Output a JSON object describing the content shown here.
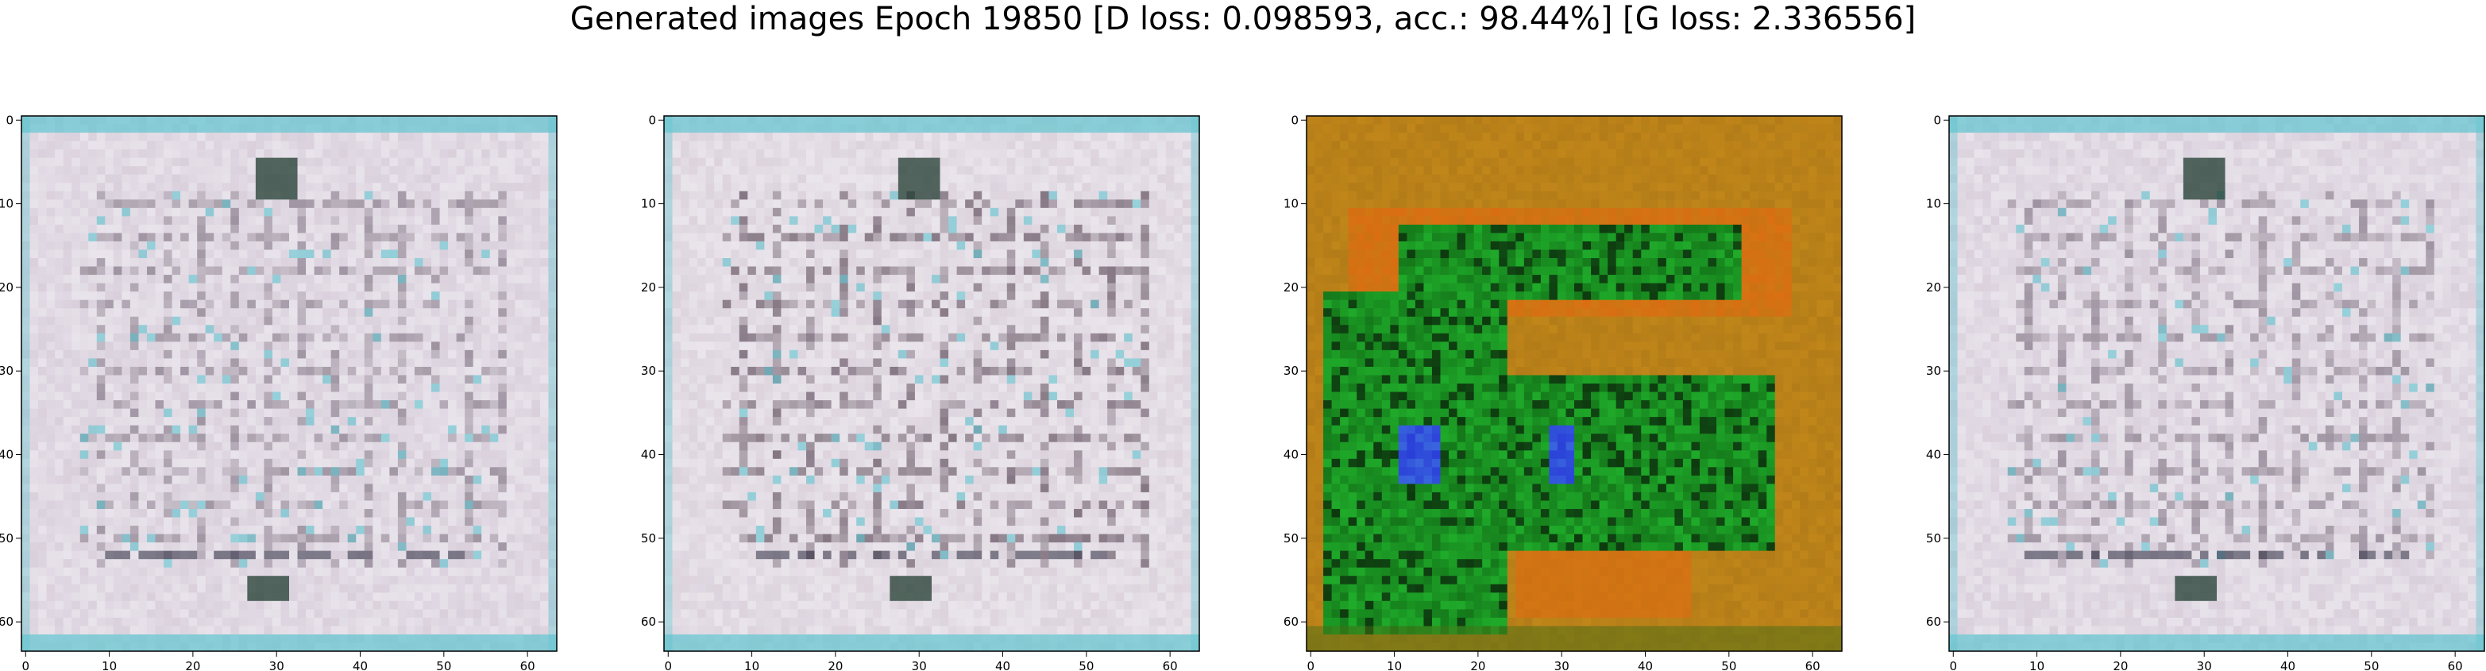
{
  "title": "Generated images Epoch 19850 [D loss: 0.098593, acc.: 98.44%] [G loss: 2.336556]",
  "chart_data": [
    {
      "type": "heatmap",
      "panel": 1,
      "image": "generated-sample-light-grid",
      "xticks": [
        "0",
        "10",
        "20",
        "30",
        "40",
        "50",
        "60"
      ],
      "yticks": [
        "0",
        "10",
        "20",
        "30",
        "40",
        "50",
        "60"
      ],
      "xlim": [
        -0.5,
        63.5
      ],
      "ylim": [
        63.5,
        -0.5
      ],
      "palette": {
        "base": "#d9d0dc",
        "line": "#8f8391",
        "accent": "#5fc4cf",
        "spot": "#1f3a2e"
      }
    },
    {
      "type": "heatmap",
      "panel": 2,
      "image": "generated-sample-light-grid",
      "xticks": [
        "0",
        "10",
        "20",
        "30",
        "40",
        "50",
        "60"
      ],
      "yticks": [
        "0",
        "10",
        "20",
        "30",
        "40",
        "50",
        "60"
      ],
      "xlim": [
        -0.5,
        63.5
      ],
      "ylim": [
        63.5,
        -0.5
      ],
      "palette": {
        "base": "#dcd3dd",
        "line": "#6e5f6c",
        "accent": "#5fc4cf",
        "spot": "#1f3a2e"
      }
    },
    {
      "type": "heatmap",
      "panel": 3,
      "image": "generated-sample-green-orange",
      "xticks": [
        "0",
        "10",
        "20",
        "30",
        "40",
        "50",
        "60"
      ],
      "yticks": [
        "0",
        "10",
        "20",
        "30",
        "40",
        "50",
        "60"
      ],
      "xlim": [
        -0.5,
        63.5
      ],
      "ylim": [
        63.5,
        -0.5
      ],
      "palette": {
        "base": "#c0861a",
        "line": "#e06a10",
        "accent": "#1faa2a",
        "spot": "#2a3fd8"
      }
    },
    {
      "type": "heatmap",
      "panel": 4,
      "image": "generated-sample-light-grid",
      "xticks": [
        "0",
        "10",
        "20",
        "30",
        "40",
        "50",
        "60"
      ],
      "yticks": [
        "0",
        "10",
        "20",
        "30",
        "40",
        "50",
        "60"
      ],
      "xlim": [
        -0.5,
        63.5
      ],
      "ylim": [
        63.5,
        -0.5
      ],
      "palette": {
        "base": "#d9d0dc",
        "line": "#8f8391",
        "accent": "#5fc4cf",
        "spot": "#1f3a2e"
      }
    }
  ]
}
